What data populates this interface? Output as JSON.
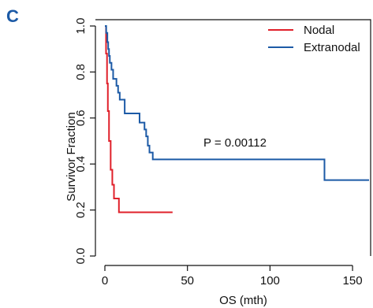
{
  "panel_label": "C",
  "chart_data": {
    "type": "line",
    "title": "",
    "xlabel": "OS (mth)",
    "ylabel": "Survivor Fraction",
    "xlim": [
      0,
      160
    ],
    "ylim": [
      0,
      1
    ],
    "x_ticks": [
      0,
      50,
      100,
      150
    ],
    "y_ticks": [
      0.0,
      0.2,
      0.4,
      0.6,
      0.8,
      1.0
    ],
    "x_tick_labels": [
      "0",
      "50",
      "100",
      "150"
    ],
    "y_tick_labels": [
      "0.0",
      "0.2",
      "0.4",
      "0.6",
      "0.8",
      "1.0"
    ],
    "grid": false,
    "legend": "top-right",
    "annotation": "P = 0.00112",
    "series": [
      {
        "name": "Nodal",
        "color": "#e0202a",
        "step": true,
        "points": [
          [
            0,
            1.0
          ],
          [
            0.7,
            0.88
          ],
          [
            1.3,
            0.75
          ],
          [
            1.8,
            0.63
          ],
          [
            2.5,
            0.5
          ],
          [
            3.5,
            0.375
          ],
          [
            4.5,
            0.31
          ],
          [
            5.5,
            0.25
          ],
          [
            8.5,
            0.19
          ],
          [
            41,
            0.19
          ]
        ]
      },
      {
        "name": "Extranodal",
        "color": "#1c5aa6",
        "step": true,
        "points": [
          [
            0,
            1.0
          ],
          [
            0.8,
            0.97
          ],
          [
            1.5,
            0.93
          ],
          [
            2,
            0.9
          ],
          [
            2.5,
            0.87
          ],
          [
            3,
            0.84
          ],
          [
            4,
            0.81
          ],
          [
            5,
            0.77
          ],
          [
            7,
            0.74
          ],
          [
            8,
            0.71
          ],
          [
            9,
            0.68
          ],
          [
            12,
            0.62
          ],
          [
            21,
            0.58
          ],
          [
            24,
            0.55
          ],
          [
            25,
            0.52
          ],
          [
            26,
            0.48
          ],
          [
            27,
            0.45
          ],
          [
            29,
            0.42
          ],
          [
            133,
            0.42
          ],
          [
            133,
            0.33
          ],
          [
            160,
            0.33
          ]
        ]
      }
    ]
  }
}
